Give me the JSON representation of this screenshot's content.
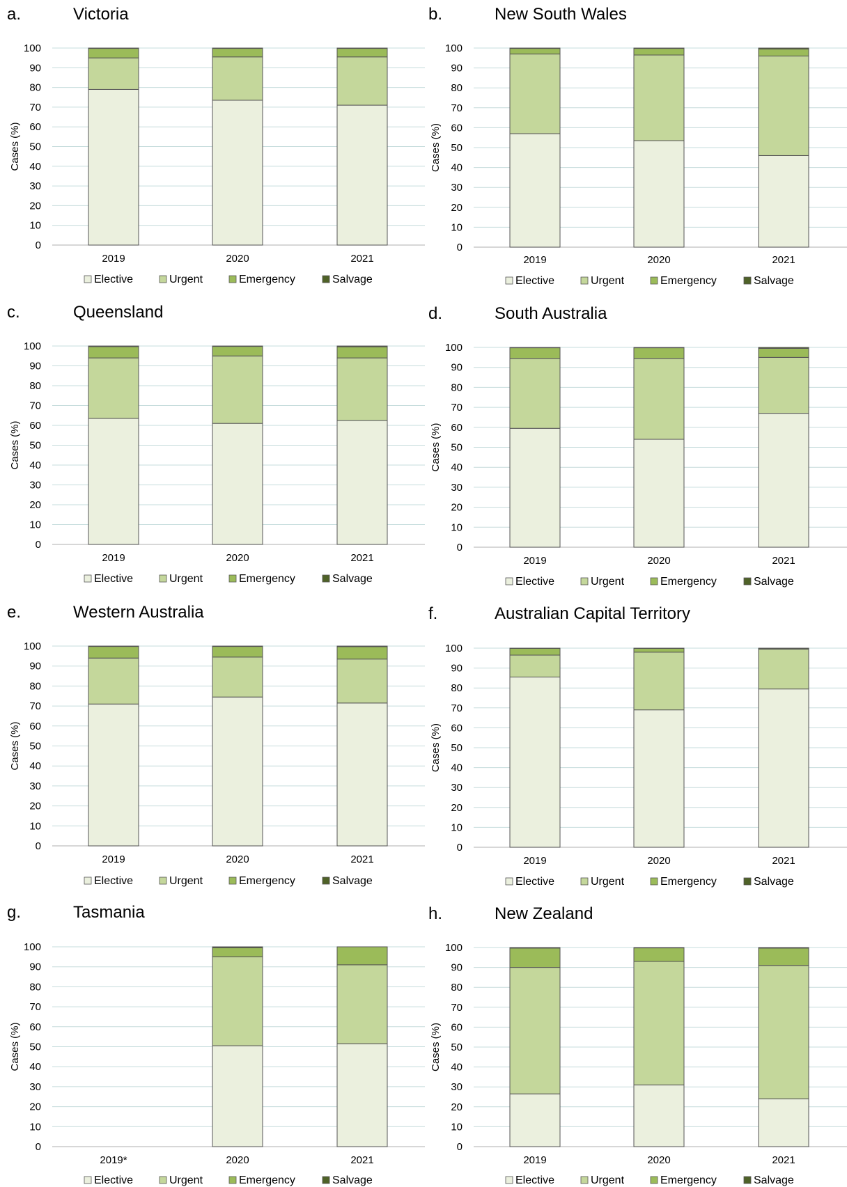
{
  "colors": {
    "elective": "#EBF0DE",
    "urgent": "#C4D79B",
    "emergency": "#9BBB59",
    "salvage": "#4F6228",
    "grid": "#C5DCDC",
    "outline": "#555555"
  },
  "legend_labels": [
    "Elective",
    "Urgent",
    "Emergency",
    "Salvage"
  ],
  "ylabel": "Cases (%)",
  "chart_data": [
    {
      "type": "bar",
      "stacked": true,
      "panel": "a.",
      "title": "Victoria",
      "categories": [
        "2019",
        "2020",
        "2021"
      ],
      "ylim": [
        0,
        100
      ],
      "yticks": [
        0,
        10,
        20,
        30,
        40,
        50,
        60,
        70,
        80,
        90,
        100
      ],
      "ylabel": "Cases (%)",
      "legend": "bottom",
      "grid": true,
      "series": [
        {
          "name": "Elective",
          "values": [
            79,
            73.5,
            71
          ]
        },
        {
          "name": "Urgent",
          "values": [
            16,
            22,
            24.5
          ]
        },
        {
          "name": "Emergency",
          "values": [
            4.8,
            4.3,
            4.3
          ]
        },
        {
          "name": "Salvage",
          "values": [
            0.2,
            0.2,
            0.2
          ]
        }
      ]
    },
    {
      "type": "bar",
      "stacked": true,
      "panel": "b.",
      "title": "New South Wales",
      "categories": [
        "2019",
        "2020",
        "2021"
      ],
      "ylim": [
        0,
        100
      ],
      "yticks": [
        0,
        10,
        20,
        30,
        40,
        50,
        60,
        70,
        80,
        90,
        100
      ],
      "ylabel": "Cases (%)",
      "legend": "bottom",
      "grid": true,
      "series": [
        {
          "name": "Elective",
          "values": [
            57,
            53.5,
            46
          ]
        },
        {
          "name": "Urgent",
          "values": [
            40,
            43,
            50
          ]
        },
        {
          "name": "Emergency",
          "values": [
            2.8,
            3.3,
            3.5
          ]
        },
        {
          "name": "Salvage",
          "values": [
            0.2,
            0.2,
            0.5
          ]
        }
      ]
    },
    {
      "type": "bar",
      "stacked": true,
      "panel": "c.",
      "title": "Queensland",
      "categories": [
        "2019",
        "2020",
        "2021"
      ],
      "ylim": [
        0,
        100
      ],
      "yticks": [
        0,
        10,
        20,
        30,
        40,
        50,
        60,
        70,
        80,
        90,
        100
      ],
      "ylabel": "Cases (%)",
      "legend": "bottom",
      "grid": true,
      "series": [
        {
          "name": "Elective",
          "values": [
            63.5,
            61,
            62.5
          ]
        },
        {
          "name": "Urgent",
          "values": [
            30.5,
            34,
            31.5
          ]
        },
        {
          "name": "Emergency",
          "values": [
            5.7,
            4.8,
            5.6
          ]
        },
        {
          "name": "Salvage",
          "values": [
            0.3,
            0.2,
            0.4
          ]
        }
      ]
    },
    {
      "type": "bar",
      "stacked": true,
      "panel": "d.",
      "title": "South Australia",
      "categories": [
        "2019",
        "2020",
        "2021"
      ],
      "ylim": [
        0,
        100
      ],
      "yticks": [
        0,
        10,
        20,
        30,
        40,
        50,
        60,
        70,
        80,
        90,
        100
      ],
      "ylabel": "Cases (%)",
      "legend": "bottom",
      "grid": true,
      "series": [
        {
          "name": "Elective",
          "values": [
            59.5,
            54,
            67
          ]
        },
        {
          "name": "Urgent",
          "values": [
            35,
            40.5,
            28
          ]
        },
        {
          "name": "Emergency",
          "values": [
            5.3,
            5.3,
            4.5
          ]
        },
        {
          "name": "Salvage",
          "values": [
            0.2,
            0.2,
            0.5
          ]
        }
      ]
    },
    {
      "type": "bar",
      "stacked": true,
      "panel": "e.",
      "title": "Western Australia",
      "categories": [
        "2019",
        "2020",
        "2021"
      ],
      "ylim": [
        0,
        100
      ],
      "yticks": [
        0,
        10,
        20,
        30,
        40,
        50,
        60,
        70,
        80,
        90,
        100
      ],
      "ylabel": "Cases (%)",
      "legend": "bottom",
      "grid": true,
      "series": [
        {
          "name": "Elective",
          "values": [
            71,
            74.5,
            71.5
          ]
        },
        {
          "name": "Urgent",
          "values": [
            23,
            20,
            22
          ]
        },
        {
          "name": "Emergency",
          "values": [
            5.8,
            5.3,
            6.2
          ]
        },
        {
          "name": "Salvage",
          "values": [
            0.2,
            0.2,
            0.3
          ]
        }
      ]
    },
    {
      "type": "bar",
      "stacked": true,
      "panel": "f.",
      "title": "Australian Capital Territory",
      "categories": [
        "2019",
        "2020",
        "2021"
      ],
      "ylim": [
        0,
        100
      ],
      "yticks": [
        0,
        10,
        20,
        30,
        40,
        50,
        60,
        70,
        80,
        90,
        100
      ],
      "ylabel": "Cases (%)",
      "legend": "bottom",
      "grid": true,
      "series": [
        {
          "name": "Elective",
          "values": [
            85.5,
            69,
            79.5
          ]
        },
        {
          "name": "Urgent",
          "values": [
            11,
            29,
            20
          ]
        },
        {
          "name": "Emergency",
          "values": [
            3.4,
            1.9,
            0.4
          ]
        },
        {
          "name": "Salvage",
          "values": [
            0.1,
            0.1,
            0.1
          ]
        }
      ]
    },
    {
      "type": "bar",
      "stacked": true,
      "panel": "g.",
      "title": "Tasmania",
      "categories": [
        "2019*",
        "2020",
        "2021"
      ],
      "ylim": [
        0,
        100
      ],
      "yticks": [
        0,
        10,
        20,
        30,
        40,
        50,
        60,
        70,
        80,
        90,
        100
      ],
      "ylabel": "Cases (%)",
      "legend": "bottom",
      "grid": true,
      "series": [
        {
          "name": "Elective",
          "values": [
            null,
            50.5,
            51.5
          ]
        },
        {
          "name": "Urgent",
          "values": [
            null,
            44.5,
            39.5
          ]
        },
        {
          "name": "Emergency",
          "values": [
            null,
            4.5,
            9
          ]
        },
        {
          "name": "Salvage",
          "values": [
            null,
            0.5,
            0
          ]
        }
      ]
    },
    {
      "type": "bar",
      "stacked": true,
      "panel": "h.",
      "title": "New Zealand",
      "categories": [
        "2019",
        "2020",
        "2021"
      ],
      "ylim": [
        0,
        100
      ],
      "yticks": [
        0,
        10,
        20,
        30,
        40,
        50,
        60,
        70,
        80,
        90,
        100
      ],
      "ylabel": "Cases (%)",
      "legend": "bottom",
      "grid": true,
      "series": [
        {
          "name": "Elective",
          "values": [
            26.5,
            31,
            24
          ]
        },
        {
          "name": "Urgent",
          "values": [
            63.5,
            62,
            67
          ]
        },
        {
          "name": "Emergency",
          "values": [
            9.7,
            6.8,
            8.7
          ]
        },
        {
          "name": "Salvage",
          "values": [
            0.3,
            0.2,
            0.3
          ]
        }
      ]
    }
  ]
}
